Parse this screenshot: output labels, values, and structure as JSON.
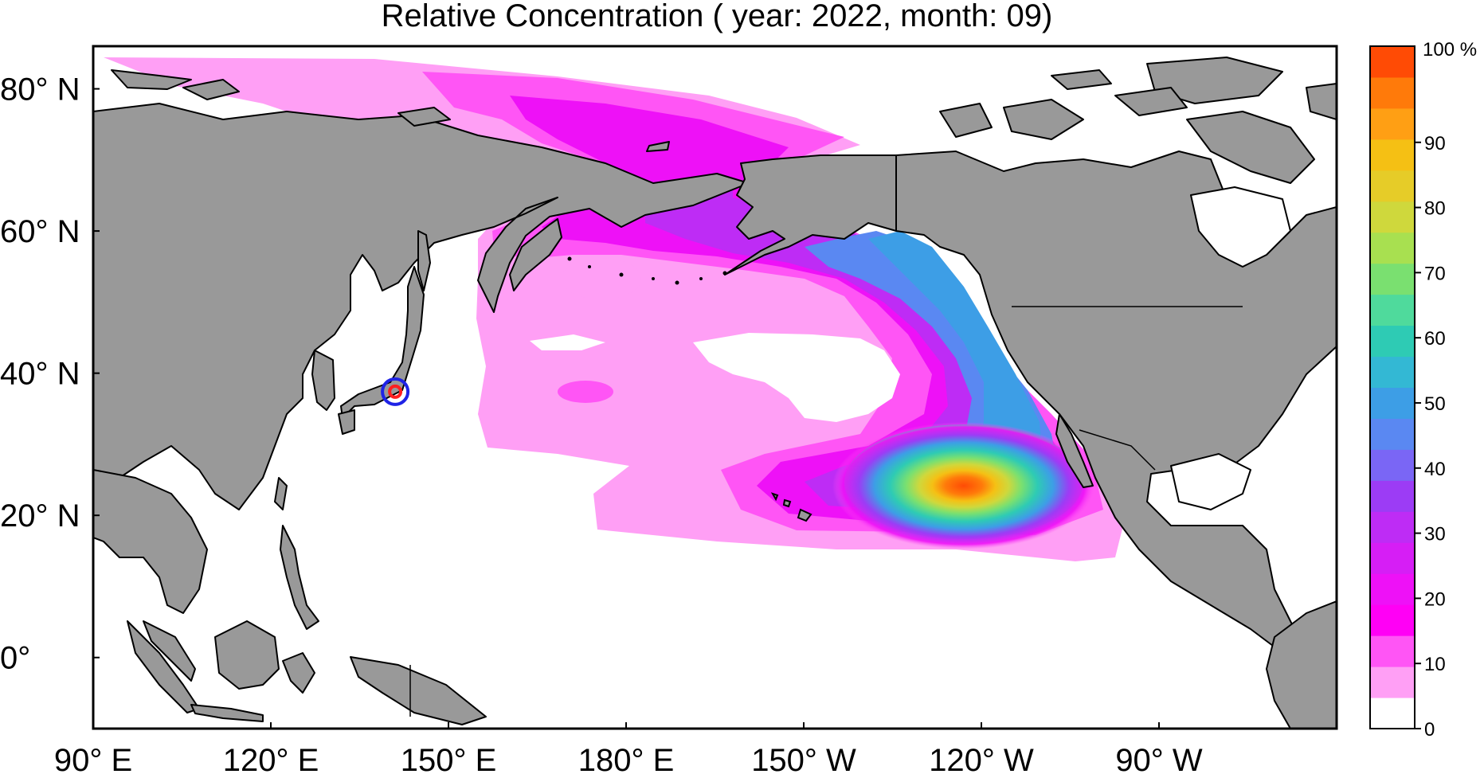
{
  "title": "Relative Concentration ( year: 2022, month: 09)",
  "map": {
    "lon_range": [
      90,
      300
    ],
    "lat_range": [
      -10,
      86
    ],
    "lat_ticks": [
      {
        "value": 80,
        "label": "80° N"
      },
      {
        "value": 60,
        "label": "60° N"
      },
      {
        "value": 40,
        "label": "40° N"
      },
      {
        "value": 20,
        "label": "20° N"
      },
      {
        "value": 0,
        "label": "0°"
      }
    ],
    "lon_ticks": [
      {
        "value": 90,
        "label": "90° E"
      },
      {
        "value": 120,
        "label": "120° E"
      },
      {
        "value": 150,
        "label": "150° E"
      },
      {
        "value": 180,
        "label": "180° E"
      },
      {
        "value": 210,
        "label": "150° W"
      },
      {
        "value": 240,
        "label": "120° W"
      },
      {
        "value": 270,
        "label": "90° W"
      }
    ],
    "source_marker": {
      "lon": 141.0,
      "lat": 37.4
    },
    "peak_location": {
      "lon": 232,
      "lat": 24,
      "value_percent": 98
    },
    "land_color": "#999999",
    "ocean_color": "#ffffff"
  },
  "colorbar": {
    "unit_label": "100 %",
    "tick_labels": [
      "0",
      "10",
      "20",
      "30",
      "40",
      "50",
      "60",
      "70",
      "80",
      "90"
    ],
    "colors": [
      "#ffffff",
      "#ff9ff5",
      "#ff55f5",
      "#ff00f5",
      "#ee11f7",
      "#d61ef5",
      "#be2cf5",
      "#9c3cf5",
      "#7a66f5",
      "#5a88f2",
      "#3d9ee6",
      "#33b8d4",
      "#2ecbb4",
      "#4fda9c",
      "#7ae070",
      "#a8e050",
      "#cfd83c",
      "#e6cc28",
      "#f5c014",
      "#ff9f14",
      "#ff7a0a",
      "#ff4b05"
    ]
  }
}
